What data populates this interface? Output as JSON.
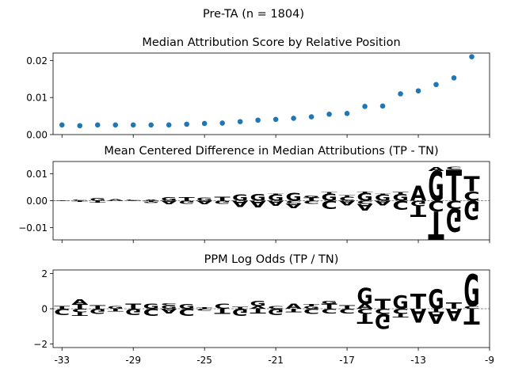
{
  "figure": {
    "suptitle": "Pre-TA (n = 1804)"
  },
  "colors": {
    "A": "#008000",
    "C": "#0000cc",
    "G": "#ffa500",
    "T": "#ff0000",
    "dot": "#1f77b4"
  },
  "chart_data": [
    {
      "type": "scatter",
      "title": "Median Attribution Score by Relative Position",
      "xlim": [
        -33.5,
        -9
      ],
      "ylim": [
        0,
        0.022
      ],
      "yticks": [
        "0.00",
        "0.01",
        "0.02"
      ],
      "ytick_values": [
        0,
        0.01,
        0.02
      ],
      "x": [
        -33,
        -32,
        -31,
        -30,
        -29,
        -28,
        -27,
        -26,
        -25,
        -24,
        -23,
        -22,
        -21,
        -20,
        -19,
        -18,
        -17,
        -16,
        -15,
        -14,
        -13,
        -12,
        -11,
        -10
      ],
      "y": [
        0.0026,
        0.0024,
        0.0026,
        0.0026,
        0.0026,
        0.0026,
        0.0026,
        0.0028,
        0.003,
        0.0031,
        0.0035,
        0.0039,
        0.0041,
        0.0044,
        0.0048,
        0.0055,
        0.0057,
        0.0076,
        0.0077,
        0.011,
        0.0118,
        0.0135,
        0.0153,
        0.021
      ]
    },
    {
      "type": "logo",
      "title": "Mean Centered Difference in Median Attributions (TP - TN)",
      "xlim": [
        -33.5,
        -9
      ],
      "ylim": [
        -0.0145,
        0.0145
      ],
      "yticks": [
        "−0.01",
        "0.00",
        "0.01"
      ],
      "ytick_values": [
        -0.01,
        0,
        0.01
      ],
      "positions": [
        {
          "x": -33,
          "pos": [
            [
              "T",
              0.0002
            ]
          ],
          "neg": [
            [
              "C",
              0.0002
            ]
          ]
        },
        {
          "x": -32,
          "pos": [
            [
              "C",
              0.0004
            ]
          ],
          "neg": [
            [
              "T",
              0.0003
            ]
          ]
        },
        {
          "x": -31,
          "pos": [
            [
              "G",
              0.0009
            ]
          ],
          "neg": [
            [
              "T",
              0.0007
            ]
          ]
        },
        {
          "x": -30,
          "pos": [
            [
              "A",
              0.0006
            ]
          ],
          "neg": [
            [
              "C",
              0.0002
            ]
          ]
        },
        {
          "x": -29,
          "pos": [
            [
              "C",
              0.0004
            ]
          ],
          "neg": [
            [
              "T",
              0.0002
            ]
          ]
        },
        {
          "x": -28,
          "pos": [
            [
              "A",
              0.0003
            ]
          ],
          "neg": [
            [
              "T",
              0.0004
            ],
            [
              "G",
              0.0003
            ]
          ]
        },
        {
          "x": -27,
          "pos": [
            [
              "G",
              0.0013
            ]
          ],
          "neg": [
            [
              "A",
              0.0014
            ]
          ]
        },
        {
          "x": -26,
          "pos": [
            [
              "T",
              0.0014
            ]
          ],
          "neg": [
            [
              "G",
              0.0012
            ]
          ]
        },
        {
          "x": -25,
          "pos": [
            [
              "G",
              0.0012
            ]
          ],
          "neg": [
            [
              "A",
              0.0013
            ]
          ]
        },
        {
          "x": -24,
          "pos": [
            [
              "T",
              0.0015
            ]
          ],
          "neg": [
            [
              "G",
              0.0012
            ]
          ]
        },
        {
          "x": -23,
          "pos": [
            [
              "G",
              0.0023
            ]
          ],
          "neg": [
            [
              "A",
              0.0022
            ]
          ]
        },
        {
          "x": -22,
          "pos": [
            [
              "G",
              0.0025
            ]
          ],
          "neg": [
            [
              "A",
              0.0024
            ]
          ]
        },
        {
          "x": -21,
          "pos": [
            [
              "G",
              0.0022
            ],
            [
              "T",
              0.0003
            ]
          ],
          "neg": [
            [
              "A",
              0.0019
            ]
          ]
        },
        {
          "x": -20,
          "pos": [
            [
              "G",
              0.0028
            ]
          ],
          "neg": [
            [
              "C",
              0.001
            ],
            [
              "A",
              0.0017
            ]
          ]
        },
        {
          "x": -19,
          "pos": [
            [
              "T",
              0.0012
            ],
            [
              "G",
              0.0008
            ]
          ],
          "neg": [
            [
              "C",
              0.0012
            ]
          ]
        },
        {
          "x": -18,
          "pos": [
            [
              "G",
              0.0026
            ],
            [
              "T",
              0.0005
            ]
          ],
          "neg": [
            [
              "C",
              0.003
            ]
          ]
        },
        {
          "x": -17,
          "pos": [
            [
              "C",
              0.0015
            ],
            [
              "T",
              0.0005
            ]
          ],
          "neg": [
            [
              "A",
              0.0017
            ]
          ]
        },
        {
          "x": -16,
          "pos": [
            [
              "G",
              0.0028
            ],
            [
              "T",
              0.0005
            ]
          ],
          "neg": [
            [
              "C",
              0.0012
            ],
            [
              "A",
              0.0024
            ]
          ]
        },
        {
          "x": -15,
          "pos": [
            [
              "G",
              0.0022
            ],
            [
              "T",
              0.0004
            ]
          ],
          "neg": [
            [
              "A",
              0.0016
            ]
          ]
        },
        {
          "x": -14,
          "pos": [
            [
              "G",
              0.0025
            ],
            [
              "T",
              0.0008
            ]
          ],
          "neg": [
            [
              "C",
              0.0035
            ]
          ]
        },
        {
          "x": -13,
          "pos": [
            [
              "A",
              0.0055
            ]
          ],
          "neg": [
            [
              "G",
              0.002
            ],
            [
              "T",
              0.004
            ]
          ]
        },
        {
          "x": -12,
          "pos": [
            [
              "G",
              0.011
            ],
            [
              "A",
              0.0015
            ]
          ],
          "neg": [
            [
              "C",
              0.004
            ],
            [
              "T",
              0.0105
            ]
          ]
        },
        {
          "x": -11,
          "pos": [
            [
              "T",
              0.0115
            ],
            [
              "C",
              0.001
            ]
          ],
          "neg": [
            [
              "C",
              0.003
            ],
            [
              "G",
              0.0085
            ]
          ]
        },
        {
          "x": -10,
          "pos": [
            [
              "C",
              0.0035
            ],
            [
              "T",
              0.0055
            ]
          ],
          "neg": [
            [
              "G",
              0.007
            ]
          ]
        }
      ]
    },
    {
      "type": "logo",
      "title": "PPM Log Odds (TP / TN)",
      "xlim": [
        -33.5,
        -9
      ],
      "ylim": [
        -2.2,
        2.2
      ],
      "yticks": [
        "−2",
        "0",
        "2"
      ],
      "ytick_values": [
        -2,
        0,
        2
      ],
      "xticks": [
        "-33",
        "-29",
        "-25",
        "-21",
        "-17",
        "-13",
        "-9"
      ],
      "xtick_values": [
        -33,
        -29,
        -25,
        -21,
        -17,
        -13,
        -9
      ],
      "positions": [
        {
          "x": -33,
          "pos": [
            [
              "T",
              0.15
            ]
          ],
          "neg": [
            [
              "C",
              0.35
            ]
          ]
        },
        {
          "x": -32,
          "pos": [
            [
              "T",
              0.25
            ],
            [
              "A",
              0.3
            ]
          ],
          "neg": [
            [
              "C",
              0.2
            ],
            [
              "T",
              0.2
            ]
          ]
        },
        {
          "x": -31,
          "pos": [
            [
              "T",
              0.2
            ]
          ],
          "neg": [
            [
              "G",
              0.3
            ]
          ]
        },
        {
          "x": -30,
          "pos": [
            [
              "G",
              0.15
            ]
          ],
          "neg": [
            [
              "T",
              0.15
            ]
          ]
        },
        {
          "x": -29,
          "pos": [
            [
              "T",
              0.3
            ]
          ],
          "neg": [
            [
              "G",
              0.35
            ]
          ]
        },
        {
          "x": -28,
          "pos": [
            [
              "G",
              0.3
            ]
          ],
          "neg": [
            [
              "C",
              0.4
            ]
          ]
        },
        {
          "x": -27,
          "pos": [
            [
              "G",
              0.2
            ],
            [
              "C",
              0.1
            ]
          ],
          "neg": [
            [
              "A",
              0.25
            ]
          ]
        },
        {
          "x": -26,
          "pos": [
            [
              "G",
              0.25
            ]
          ],
          "neg": [
            [
              "C",
              0.4
            ]
          ]
        },
        {
          "x": -25,
          "pos": [
            [
              "T",
              0.08
            ]
          ],
          "neg": [
            [
              "C",
              0.1
            ]
          ]
        },
        {
          "x": -24,
          "pos": [
            [
              "C",
              0.3
            ]
          ],
          "neg": [
            [
              "T",
              0.3
            ]
          ]
        },
        {
          "x": -23,
          "pos": [
            [
              "T",
              0.12
            ]
          ],
          "neg": [
            [
              "G",
              0.4
            ]
          ]
        },
        {
          "x": -22,
          "pos": [
            [
              "A",
              0.15
            ],
            [
              "G",
              0.3
            ]
          ],
          "neg": [
            [
              "T",
              0.25
            ]
          ]
        },
        {
          "x": -21,
          "pos": [
            [
              "C",
              0.15
            ]
          ],
          "neg": [
            [
              "G",
              0.35
            ]
          ]
        },
        {
          "x": -20,
          "pos": [
            [
              "A",
              0.3
            ]
          ],
          "neg": [
            [
              "T",
              0.2
            ]
          ]
        },
        {
          "x": -19,
          "pos": [
            [
              "G",
              0.15
            ],
            [
              "T",
              0.1
            ]
          ],
          "neg": [
            [
              "C",
              0.3
            ]
          ]
        },
        {
          "x": -18,
          "pos": [
            [
              "T",
              0.3
            ],
            [
              "G",
              0.15
            ]
          ],
          "neg": [
            [
              "C",
              0.25
            ]
          ]
        },
        {
          "x": -17,
          "pos": [
            [
              "T",
              0.2
            ]
          ],
          "neg": [
            [
              "C",
              0.25
            ]
          ]
        },
        {
          "x": -16,
          "pos": [
            [
              "A",
              0.3
            ],
            [
              "G",
              0.9
            ]
          ],
          "neg": [
            [
              "C",
              0.3
            ],
            [
              "T",
              0.55
            ]
          ]
        },
        {
          "x": -15,
          "pos": [
            [
              "T",
              0.55
            ]
          ],
          "neg": [
            [
              "C",
              0.3
            ],
            [
              "G",
              0.85
            ]
          ]
        },
        {
          "x": -14,
          "pos": [
            [
              "G",
              0.75
            ]
          ],
          "neg": [
            [
              "C",
              0.3
            ],
            [
              "T",
              0.2
            ]
          ]
        },
        {
          "x": -13,
          "pos": [
            [
              "T",
              0.85
            ]
          ],
          "neg": [
            [
              "A",
              0.8
            ]
          ]
        },
        {
          "x": -12,
          "pos": [
            [
              "G",
              1.1
            ]
          ],
          "neg": [
            [
              "T",
              0.2
            ],
            [
              "A",
              0.65
            ]
          ]
        },
        {
          "x": -11,
          "pos": [
            [
              "T",
              0.35
            ]
          ],
          "neg": [
            [
              "A",
              0.7
            ]
          ]
        },
        {
          "x": -10,
          "pos": [
            [
              "C",
              0.15
            ],
            [
              "G",
              1.8
            ]
          ],
          "neg": [
            [
              "T",
              0.9
            ]
          ]
        }
      ]
    }
  ]
}
